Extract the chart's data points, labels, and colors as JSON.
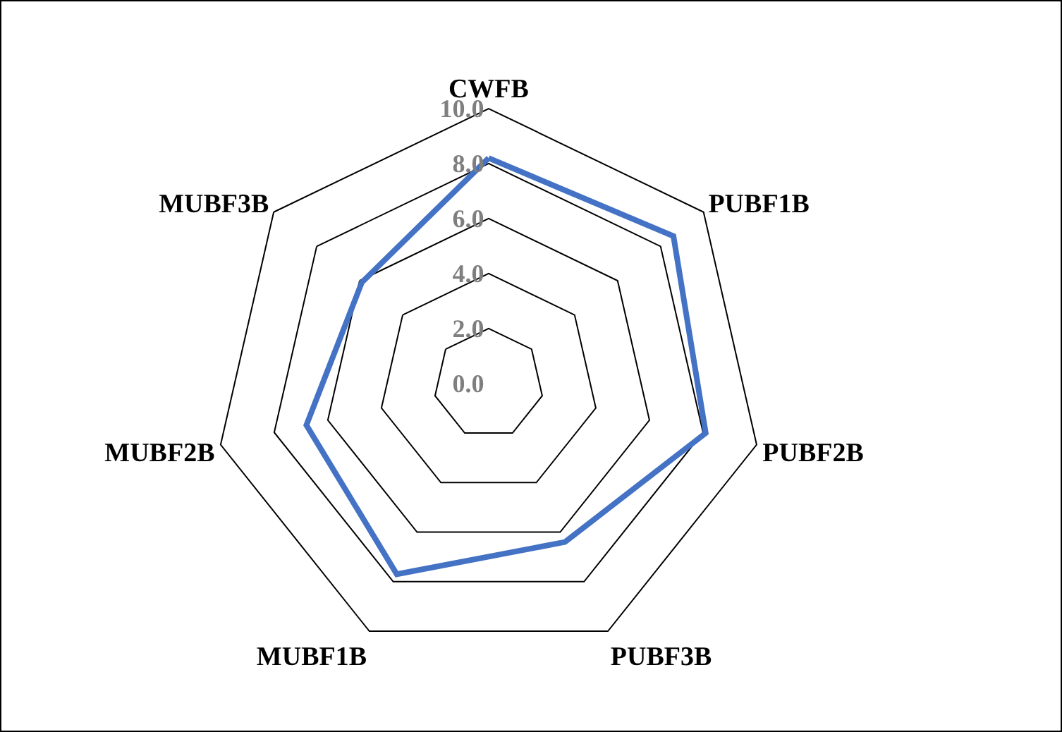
{
  "chart_data": {
    "type": "radar",
    "categories": [
      "CWFB",
      "PUBF1B",
      "PUBF2B",
      "PUBF3B",
      "MUBF1B",
      "MUBF2B",
      "MUBF3B"
    ],
    "series": [
      {
        "color": "#4472c4",
        "values": [
          8.2,
          8.6,
          8.1,
          6.4,
          7.7,
          6.8,
          5.9
        ]
      }
    ],
    "ylim": [
      0,
      10
    ],
    "yticks": [
      {
        "value": 0,
        "label": "0.0"
      },
      {
        "value": 2,
        "label": "2.0"
      },
      {
        "value": 4,
        "label": "4.0"
      },
      {
        "value": 6,
        "label": "6.0"
      },
      {
        "value": 8,
        "label": "8.0"
      },
      {
        "value": 10,
        "label": "10.0"
      }
    ],
    "grid": true,
    "marker": "none",
    "line_style": "solid"
  }
}
